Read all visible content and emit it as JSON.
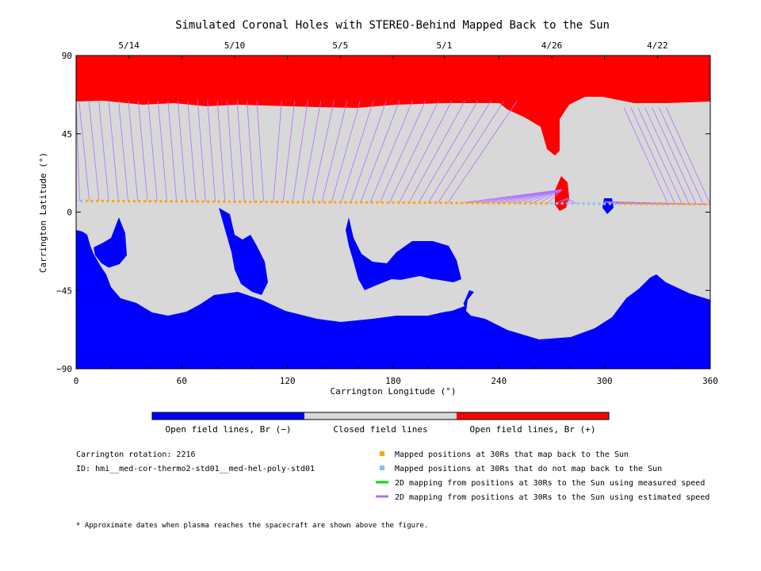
{
  "chart_data": {
    "type": "heatmap",
    "title": "Simulated Coronal Holes with STEREO-Behind Mapped Back to the Sun",
    "xlabel": "Carrington Longitude (°)",
    "ylabel": "Carrington Latitude (°)",
    "xlim": [
      0,
      360
    ],
    "ylim": [
      -90,
      90
    ],
    "x_ticks": [
      0,
      60,
      120,
      180,
      240,
      300,
      360
    ],
    "y_ticks": [
      90,
      45,
      0,
      -45,
      -90
    ],
    "x_tick_labels": [
      "0",
      "60",
      "120",
      "180",
      "240",
      "300",
      "360"
    ],
    "y_tick_labels": [
      "90",
      "45",
      "0",
      "−45",
      "−90"
    ],
    "top_dates": [
      {
        "label": "5/14",
        "lon": 30
      },
      {
        "label": "5/10",
        "lon": 90
      },
      {
        "label": "5/5",
        "lon": 150
      },
      {
        "label": "5/1",
        "lon": 209
      },
      {
        "label": "4/26",
        "lon": 270
      },
      {
        "label": "4/22",
        "lon": 330
      }
    ],
    "regions": [
      {
        "name": "Open field lines, Br (−)",
        "color": "#0000ff",
        "value": -1
      },
      {
        "name": "Closed field lines",
        "color": "#d8d8d8",
        "value": 0
      },
      {
        "name": "Open field lines, Br (+)",
        "color": "#ff0000",
        "value": 1
      }
    ],
    "trajectory": {
      "mapped_lat_at_lon0": 6.5,
      "mapped_lat_at_lon360": 4.5,
      "not_mapped_lon_ranges": [
        [
          0,
          4
        ],
        [
          270,
          308
        ]
      ],
      "mapped_color": "#ffa500",
      "not_mapped_color": "#80c0ff",
      "estimated_speed_line_color": "#b070ff",
      "measured_speed_line_color": "#00e000"
    }
  },
  "colorbar": {
    "labels": [
      "Open field lines, Br (−)",
      "Closed field lines",
      "Open field lines, Br (+)"
    ],
    "colors": [
      "#0000ff",
      "#d8d8d8",
      "#ff0000"
    ]
  },
  "info": {
    "rotation": "Carrington rotation: 2216",
    "id": "ID: hmi__med-cor-thermo2-std01__med-hel-poly-std01"
  },
  "legend": {
    "items": [
      {
        "label": "Mapped positions at 30Rs that map back to the Sun",
        "color": "#ffa500",
        "kind": "square"
      },
      {
        "label": "Mapped positions at 30Rs that do not map back to the Sun",
        "color": "#80c0ff",
        "kind": "square"
      },
      {
        "label": "2D mapping from positions at 30Rs to the Sun using measured speed",
        "color": "#00e000",
        "kind": "line"
      },
      {
        "label": "2D mapping from positions at 30Rs to the Sun using estimated speed",
        "color": "#b070ff",
        "kind": "line"
      }
    ]
  },
  "footnote": "* Approximate dates when plasma reaches the spacecraft are shown above the figure."
}
